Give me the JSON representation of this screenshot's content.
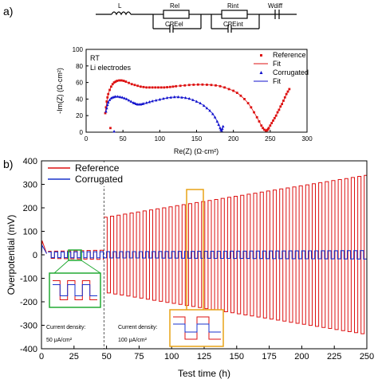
{
  "panel_a": {
    "label": "a)",
    "circuit": {
      "elements": [
        "L",
        "Rel",
        "CPEel",
        "Rint",
        "CPEint",
        "Wdiff"
      ]
    },
    "annotation_line1": "RT",
    "annotation_line2": "Li electrodes"
  },
  "panel_b": {
    "label": "b)",
    "annot_left_line1": "Current density:",
    "annot_left_line2": "50 μA/cm²",
    "annot_right_line1": "Current density:",
    "annot_right_line2": "100 μA/cm²"
  },
  "chart_data": [
    {
      "type": "scatter",
      "xlabel": "Re(Z) (Ω·cm²)",
      "ylabel": "-Im(Z) (Ω·cm²)",
      "xlim": [
        0,
        300
      ],
      "ylim": [
        0,
        100
      ],
      "xticks": [
        0,
        50,
        100,
        150,
        200,
        250,
        300
      ],
      "yticks": [
        0,
        20,
        40,
        60,
        80,
        100
      ],
      "legend_position": "top-right",
      "legend": [
        "Reference",
        "Fit",
        "Corrugated",
        "Fit"
      ],
      "series": [
        {
          "name": "Reference",
          "color": "#dd1111",
          "marker": "square",
          "x": [
            26,
            27,
            28,
            29,
            30,
            32,
            34,
            36,
            38,
            40,
            42,
            45,
            48,
            51,
            54,
            58,
            62,
            66,
            70,
            74,
            78,
            82,
            86,
            90,
            94,
            98,
            102,
            106,
            110,
            114,
            118,
            122,
            128,
            134,
            140,
            146,
            152,
            158,
            164,
            170,
            176,
            182,
            188,
            194,
            200,
            205,
            210,
            215,
            220,
            224,
            228,
            232,
            235,
            238,
            240,
            242,
            244,
            245,
            246,
            247,
            248,
            250,
            252,
            254,
            256,
            258,
            260,
            262,
            264,
            266,
            268,
            270,
            272,
            274,
            276
          ],
          "y": [
            23,
            30,
            37,
            42,
            46,
            51,
            55,
            58,
            60,
            61,
            62,
            62.5,
            62.5,
            62,
            61,
            59.5,
            58,
            57,
            56,
            55,
            54.5,
            54,
            54,
            54,
            54,
            54,
            54,
            54,
            54.3,
            54.6,
            55,
            55.5,
            56,
            56.5,
            57,
            57.3,
            57.5,
            57.5,
            57.3,
            57,
            56.5,
            55.5,
            54,
            52,
            50,
            47.5,
            44,
            40,
            35,
            30,
            24,
            18,
            13,
            8,
            5,
            3,
            2,
            2,
            2.5,
            3.5,
            5,
            8,
            11,
            14,
            17,
            20,
            24,
            27,
            31,
            34,
            38,
            42,
            46,
            49,
            52
          ]
        },
        {
          "name": "Corrugated",
          "color": "#1111cc",
          "marker": "triangle",
          "x": [
            27,
            28,
            29,
            30,
            32,
            34,
            36,
            38,
            40,
            43,
            46,
            49,
            52,
            55,
            58,
            61,
            64,
            66,
            68,
            70,
            72,
            74,
            76,
            78,
            82,
            86,
            90,
            95,
            100,
            105,
            110,
            115,
            120,
            125,
            130,
            135,
            140,
            145,
            150,
            155,
            160,
            164,
            168,
            172,
            175,
            178,
            180,
            182,
            183,
            184,
            185,
            186
          ],
          "y": [
            25,
            29,
            33,
            36,
            39,
            41,
            42,
            42.5,
            43,
            43,
            42.5,
            42,
            41,
            40,
            38.5,
            37,
            35.5,
            35,
            34,
            33.5,
            33.5,
            33.5,
            34,
            34.5,
            35.5,
            36.5,
            37.5,
            38.5,
            39.5,
            40.5,
            41.5,
            42,
            42.5,
            42.5,
            42,
            41.5,
            40.5,
            39,
            37,
            35,
            32,
            29,
            26,
            22,
            18,
            13,
            9,
            5,
            3,
            2,
            4,
            7
          ]
        }
      ],
      "outliers": {
        "Reference": {
          "x": [
            33
          ],
          "y": [
            5
          ]
        },
        "Corrugated": {
          "x": [
            38
          ],
          "y": [
            1
          ]
        }
      }
    },
    {
      "type": "line",
      "xlabel": "Test time (h)",
      "ylabel": "Overpotential (mV)",
      "xlim": [
        0,
        250
      ],
      "ylim": [
        -400,
        400
      ],
      "xticks": [
        0,
        25,
        50,
        75,
        100,
        125,
        150,
        175,
        200,
        225,
        250
      ],
      "yticks": [
        -400,
        -300,
        -200,
        -100,
        0,
        100,
        200,
        300,
        400
      ],
      "legend_position": "top-left",
      "vline_x": 48,
      "series": [
        {
          "name": "Reference",
          "color": "#dd1111",
          "segments": [
            {
              "t_start": 5,
              "t_end": 48,
              "amplitude_start": 15,
              "amplitude_end": 20
            },
            {
              "t_start": 48,
              "t_end": 250,
              "amplitude_start": 160,
              "amplitude_end": 340
            }
          ],
          "cycle_hours": 5
        },
        {
          "name": "Corrugated",
          "color": "#1a33cc",
          "segments": [
            {
              "t_start": 5,
              "t_end": 250,
              "amplitude_start": 12,
              "amplitude_end": 18
            }
          ],
          "cycle_hours": 5
        }
      ]
    }
  ]
}
